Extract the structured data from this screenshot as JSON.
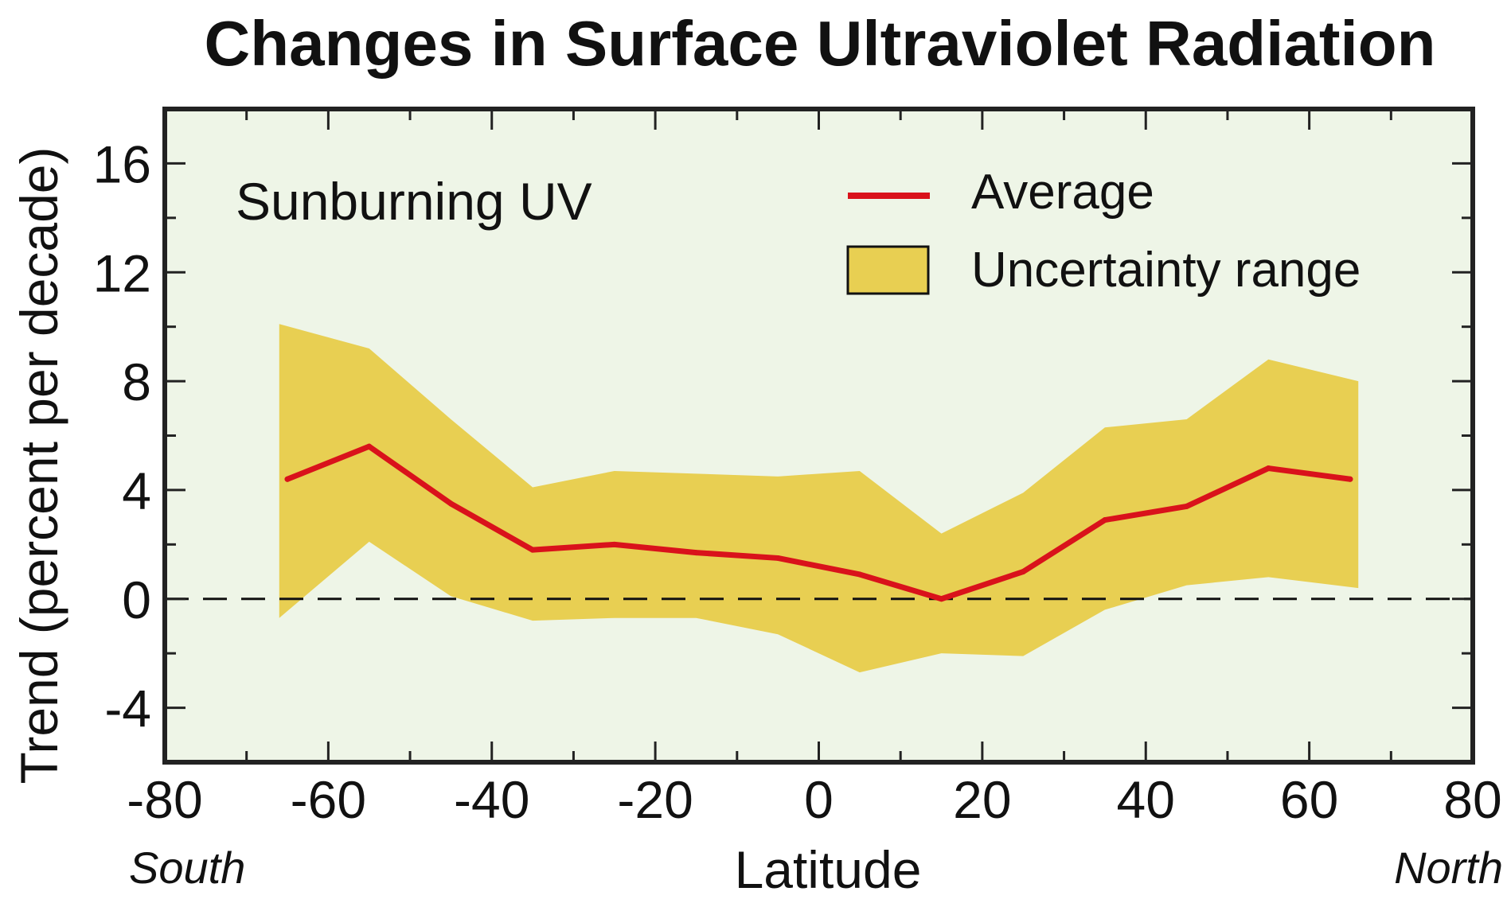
{
  "chart_data": {
    "type": "area",
    "title": "Changes in Surface Ultraviolet Radiation",
    "panel_label": "Sunburning UV",
    "xlabel": "Latitude",
    "ylabel": "Trend (percent per decade)",
    "x_direction_labels": {
      "left": "South",
      "right": "North"
    },
    "xlim": [
      -80,
      80
    ],
    "ylim": [
      -6,
      18
    ],
    "x_ticks": [
      -80,
      -60,
      -40,
      -20,
      0,
      20,
      40,
      60,
      80
    ],
    "y_ticks": [
      -4,
      0,
      4,
      8,
      12,
      16
    ],
    "x": [
      -65,
      -55,
      -45,
      -35,
      -25,
      -15,
      -5,
      5,
      15,
      25,
      35,
      45,
      55,
      65
    ],
    "series": [
      {
        "name": "Average",
        "type": "line",
        "color": "#d9121b",
        "values": [
          4.4,
          5.6,
          3.5,
          1.8,
          2.0,
          1.7,
          1.5,
          0.9,
          0.0,
          1.0,
          2.9,
          3.4,
          4.8,
          4.4
        ]
      },
      {
        "name": "Uncertainty range",
        "type": "band",
        "color": "#e8cf52",
        "band_x": [
          -66,
          -55,
          -45,
          -35,
          -25,
          -15,
          -5,
          5,
          15,
          25,
          35,
          45,
          55,
          66
        ],
        "upper": [
          10.1,
          9.2,
          6.6,
          4.1,
          4.7,
          4.6,
          4.5,
          4.7,
          2.4,
          3.9,
          6.3,
          6.6,
          8.8,
          8.0
        ],
        "lower": [
          -0.7,
          2.1,
          0.1,
          -0.8,
          -0.7,
          -0.7,
          -1.3,
          -2.7,
          -2.0,
          -2.1,
          -0.4,
          0.5,
          0.8,
          0.4
        ]
      }
    ],
    "reference_line": {
      "y": 0,
      "style": "dashed"
    },
    "legend": {
      "position": "top-right",
      "entries": [
        "Average",
        "Uncertainty range"
      ]
    },
    "grid": false,
    "plot_background": "#eef5e7",
    "axis_color": "#222222"
  }
}
